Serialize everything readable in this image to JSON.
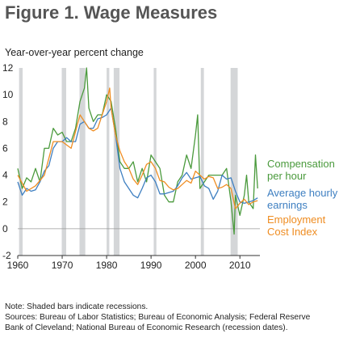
{
  "figure_title": "Figure 1. Wage Measures",
  "notes": [
    "Note: Shaded bars indicate recessions.",
    "Sources: Bureau of Labor Statistics; Bureau of Economic Analysis; Federal Reserve",
    "Bank of Cleveland; National Bureau of Economic Research (recession dates)."
  ],
  "colors": {
    "compensation": "#4a9a3c",
    "earnings": "#3e7fc1",
    "eci": "#ef8d22",
    "recession": "#d4d6d8",
    "zero_line": "#999999"
  },
  "chart_data": {
    "type": "line",
    "ylabel": "Year-over-year percent change",
    "xlim": [
      1960,
      2014.5
    ],
    "ylim": [
      -2,
      12
    ],
    "yticks": [
      -2,
      0,
      2,
      4,
      6,
      8,
      10,
      12
    ],
    "xticks": [
      1960,
      1970,
      1980,
      1990,
      2000,
      2010
    ],
    "grid": false,
    "legend_placement": "right",
    "recessions": [
      [
        1960.3,
        1961.1
      ],
      [
        1969.9,
        1970.9
      ],
      [
        1973.9,
        1975.2
      ],
      [
        1980.0,
        1980.6
      ],
      [
        1981.6,
        1982.9
      ],
      [
        1990.6,
        1991.2
      ],
      [
        2001.2,
        2001.9
      ],
      [
        2007.9,
        2009.5
      ]
    ],
    "series": [
      {
        "key": "compensation",
        "name_lines": [
          "Compensation",
          "per hour"
        ],
        "x": [
          1960,
          1961,
          1962,
          1963,
          1964,
          1965,
          1966,
          1967,
          1968,
          1969,
          1970,
          1971,
          1972,
          1973,
          1974,
          1975,
          1975.5,
          1976,
          1977,
          1978,
          1979,
          1980,
          1981,
          1982,
          1983,
          1984,
          1985,
          1986,
          1987,
          1988,
          1989,
          1990,
          1991,
          1992,
          1993,
          1994,
          1995,
          1996,
          1997,
          1998,
          1999,
          2000,
          2000.5,
          2001,
          2002,
          2003,
          2004,
          2005,
          2006,
          2007,
          2008,
          2008.7,
          2009,
          2010,
          2011,
          2011.5,
          2012,
          2013,
          2013.5,
          2014
        ],
        "values": [
          4.5,
          3.0,
          3.8,
          3.5,
          4.5,
          3.5,
          6.0,
          6.0,
          7.5,
          7.0,
          7.2,
          6.5,
          6.5,
          7.5,
          9.5,
          10.5,
          12.0,
          9.0,
          8.0,
          8.5,
          8.5,
          10.0,
          9.5,
          7.5,
          5.0,
          4.5,
          4.5,
          5.0,
          3.5,
          4.5,
          3.5,
          5.5,
          5.0,
          4.5,
          2.5,
          2.0,
          2.0,
          3.5,
          4.0,
          5.5,
          4.5,
          7.0,
          8.5,
          3.0,
          3.5,
          4.0,
          4.0,
          4.0,
          4.0,
          4.5,
          2.0,
          -0.4,
          2.5,
          1.0,
          2.5,
          4.0,
          2.0,
          1.5,
          5.5,
          3.0
        ]
      },
      {
        "key": "earnings",
        "name_lines": [
          "Average hourly",
          "earnings"
        ],
        "x": [
          1960,
          1961,
          1962,
          1963,
          1964,
          1965,
          1966,
          1967,
          1968,
          1969,
          1970,
          1971,
          1972,
          1973,
          1974,
          1975,
          1976,
          1977,
          1978,
          1979,
          1980,
          1981,
          1982,
          1983,
          1984,
          1985,
          1986,
          1987,
          1988,
          1989,
          1990,
          1991,
          1992,
          1993,
          1994,
          1995,
          1996,
          1997,
          1998,
          1999,
          2000,
          2001,
          2002,
          2003,
          2004,
          2005,
          2006,
          2007,
          2008,
          2009,
          2010,
          2011,
          2012,
          2013,
          2014
        ],
        "values": [
          3.5,
          2.5,
          3.0,
          2.8,
          2.9,
          3.5,
          4.3,
          4.7,
          6.0,
          6.5,
          6.5,
          6.8,
          6.5,
          6.5,
          7.8,
          8.0,
          7.5,
          7.5,
          8.2,
          8.3,
          8.5,
          9.0,
          7.0,
          4.5,
          3.5,
          3.0,
          2.5,
          2.3,
          3.0,
          3.8,
          4.0,
          3.5,
          2.6,
          2.6,
          2.7,
          2.8,
          3.2,
          3.8,
          4.2,
          3.7,
          3.8,
          3.9,
          3.2,
          3.0,
          2.2,
          2.8,
          4.0,
          3.7,
          3.8,
          2.8,
          2.0,
          1.9,
          2.0,
          2.1,
          2.3
        ]
      },
      {
        "key": "eci",
        "name_lines": [
          "Employment",
          "Cost Index"
        ],
        "x": [
          1960,
          1962,
          1964,
          1966,
          1968,
          1970,
          1972,
          1974,
          1975,
          1976,
          1977,
          1978,
          1979,
          1980,
          1980.7,
          1981,
          1982,
          1983,
          1984,
          1985,
          1986,
          1987,
          1988,
          1989,
          1990,
          1991,
          1992,
          1993,
          1994,
          1995,
          1996,
          1997,
          1998,
          1999,
          2000,
          2001,
          2002,
          2003,
          2004,
          2005,
          2006,
          2007,
          2008,
          2009,
          2010,
          2011,
          2012,
          2013,
          2014
        ],
        "values": [
          4.0,
          2.8,
          3.2,
          4.0,
          6.5,
          6.5,
          6.0,
          8.5,
          8.0,
          7.5,
          7.3,
          7.5,
          8.5,
          9.5,
          10.5,
          9.0,
          7.0,
          5.8,
          5.0,
          4.5,
          3.7,
          3.3,
          4.0,
          4.8,
          5.0,
          4.5,
          3.6,
          3.5,
          3.1,
          2.9,
          3.0,
          3.3,
          3.6,
          3.4,
          4.3,
          4.0,
          3.7,
          3.9,
          3.8,
          3.0,
          3.1,
          3.3,
          3.0,
          1.5,
          1.9,
          2.2,
          1.8,
          2.0,
          2.1
        ]
      }
    ]
  }
}
